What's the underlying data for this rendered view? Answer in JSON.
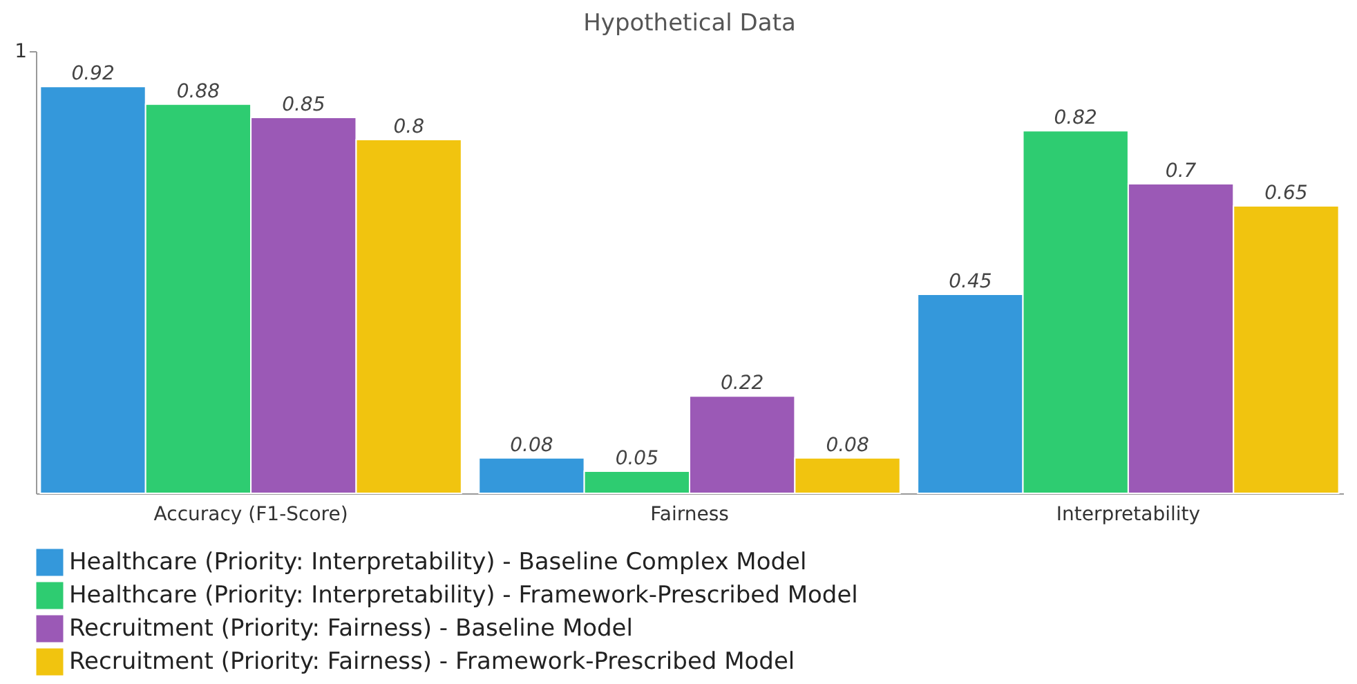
{
  "chart_data": {
    "type": "bar",
    "title": "Hypothetical Data",
    "categories": [
      "Accuracy (F1-Score)",
      "Fairness",
      "Interpretability"
    ],
    "series": [
      {
        "name": "Healthcare (Priority: Interpretability) - Baseline Complex Model",
        "color": "#3498db",
        "values": [
          0.92,
          0.08,
          0.45
        ]
      },
      {
        "name": "Healthcare (Priority: Interpretability) - Framework-Prescribed Model",
        "color": "#2ecc71",
        "values": [
          0.88,
          0.05,
          0.82
        ]
      },
      {
        "name": "Recruitment (Priority: Fairness) - Baseline Model",
        "color": "#9b59b6",
        "values": [
          0.85,
          0.22,
          0.7
        ]
      },
      {
        "name": "Recruitment (Priority: Fairness) - Framework-Prescribed Model",
        "color": "#f1c40f",
        "values": [
          0.8,
          0.08,
          0.65
        ]
      }
    ],
    "ylim": [
      0,
      1
    ],
    "yticks": [
      1
    ],
    "grid": false,
    "legend": "bottom",
    "data_labels": true
  }
}
